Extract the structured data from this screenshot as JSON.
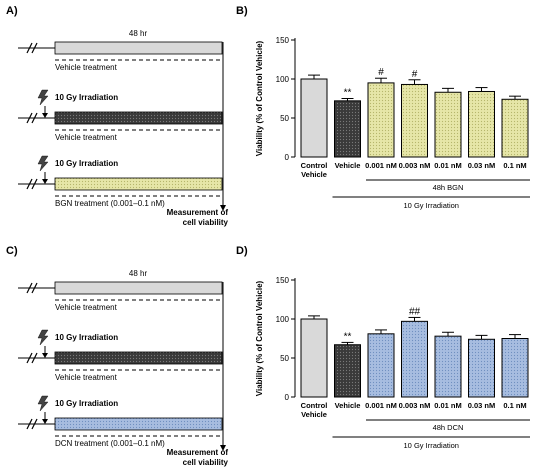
{
  "panels": [
    {
      "letter": "A)",
      "duration_label": "48 hr",
      "rows": [
        {
          "irradiation": "",
          "treatment": "Vehicle treatment",
          "bar_color": "#d9d9d9",
          "pattern": "none"
        },
        {
          "irradiation": "10 Gy Irradiation",
          "treatment": "Vehicle treatment",
          "bar_color": "#3a3a3a",
          "pattern": "dark"
        },
        {
          "irradiation": "10 Gy Irradiation",
          "treatment": "BGN  treatment  (0.001–0.1 nM)",
          "bar_color": "#e6e6a8",
          "pattern": "yellow"
        }
      ],
      "measurement_label": [
        "Measurement of",
        "cell viability"
      ]
    },
    {
      "letter": "C)",
      "duration_label": "48 hr",
      "rows": [
        {
          "irradiation": "",
          "treatment": "Vehicle treatment",
          "bar_color": "#d9d9d9",
          "pattern": "none"
        },
        {
          "irradiation": "10 Gy Irradiation",
          "treatment": "Vehicle treatment",
          "bar_color": "#3a3a3a",
          "pattern": "dark"
        },
        {
          "irradiation": "10 Gy Irradiation",
          "treatment": "DCN treatment  (0.001–0.1 nM)",
          "bar_color": "#a7bde0",
          "pattern": "blue"
        }
      ],
      "measurement_label": [
        "Measurement of",
        "cell viability"
      ]
    }
  ],
  "chart_data": [
    {
      "panel": "B)",
      "type": "bar",
      "categories": [
        "Control Vehicle",
        "Vehicle",
        "0.001 nM",
        "0.003 nM",
        "0.01 nM",
        "0.03 nM",
        "0.1 nM"
      ],
      "category_lines": [
        [
          "Control",
          "Vehicle"
        ],
        [
          "Vehicle"
        ],
        [
          "0.001 nM"
        ],
        [
          "0.003 nM"
        ],
        [
          "0.01 nM"
        ],
        [
          "0.03 nM"
        ],
        [
          "0.1 nM"
        ]
      ],
      "values": [
        100,
        72,
        95,
        93,
        83,
        84,
        74
      ],
      "errors": [
        5,
        3,
        6,
        6,
        5,
        5,
        4
      ],
      "significance": [
        "",
        "**",
        "#",
        "#",
        "",
        "",
        ""
      ],
      "colors": [
        "#d9d9d9",
        "#3a3a3a",
        "#e6e6a8",
        "#e6e6a8",
        "#e6e6a8",
        "#e6e6a8",
        "#e6e6a8"
      ],
      "ylabel": "Viability (% of Control Vehicle)",
      "ylim": [
        0,
        150
      ],
      "yticks": [
        0,
        50,
        100,
        150
      ],
      "group_label": "48h BGN",
      "outer_label": "10 Gy Irradiation"
    },
    {
      "panel": "D)",
      "type": "bar",
      "categories": [
        "Control Vehicle",
        "Vehicle",
        "0.001 nM",
        "0.003 nM",
        "0.01 nM",
        "0.03 nM",
        "0.1 nM"
      ],
      "category_lines": [
        [
          "Control",
          "Vehicle"
        ],
        [
          "Vehicle"
        ],
        [
          "0.001 nM"
        ],
        [
          "0.003 nM"
        ],
        [
          "0.01 nM"
        ],
        [
          "0.03 nM"
        ],
        [
          "0.1 nM"
        ]
      ],
      "values": [
        100,
        67,
        81,
        97,
        78,
        74,
        75
      ],
      "errors": [
        4,
        3,
        5,
        5,
        5,
        5,
        5
      ],
      "significance": [
        "",
        "**",
        "",
        "##",
        "",
        "",
        ""
      ],
      "colors": [
        "#d9d9d9",
        "#3a3a3a",
        "#a7bde0",
        "#a7bde0",
        "#a7bde0",
        "#a7bde0",
        "#a7bde0"
      ],
      "ylabel": "Viability (% of Control Vehicle)",
      "ylim": [
        0,
        150
      ],
      "yticks": [
        0,
        50,
        100,
        150
      ],
      "group_label": "48h DCN",
      "outer_label": "10 Gy Irradiation"
    }
  ]
}
